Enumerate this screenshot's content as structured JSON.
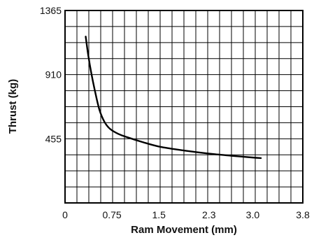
{
  "chart_data": {
    "type": "line",
    "title": "",
    "xlabel": "Ram Movement (mm)",
    "ylabel": "Thrust (kg)",
    "xlim": [
      0,
      3.8
    ],
    "ylim": [
      0,
      1365
    ],
    "grid": true,
    "x_ticks": [
      0,
      0.75,
      1.5,
      2.3,
      3.0,
      3.8
    ],
    "x_tick_labels": [
      "0",
      "0.75",
      "1.5",
      "2.3",
      "3.0",
      "3.8"
    ],
    "y_ticks": [
      455,
      910,
      1365
    ],
    "y_tick_labels": [
      "455",
      "910",
      "1365"
    ],
    "series": [
      {
        "x": [
          0.33,
          0.37,
          0.42,
          0.48,
          0.55,
          0.63,
          0.72,
          0.85,
          1.0,
          1.25,
          1.5,
          1.8,
          2.1,
          2.4,
          2.7,
          3.0,
          3.13
        ],
        "y": [
          1180,
          1050,
          920,
          790,
          660,
          575,
          525,
          490,
          465,
          430,
          400,
          378,
          360,
          345,
          333,
          322,
          318
        ]
      }
    ]
  },
  "colors": {
    "line": "#000000",
    "grid": "#000000",
    "background": "#ffffff"
  }
}
